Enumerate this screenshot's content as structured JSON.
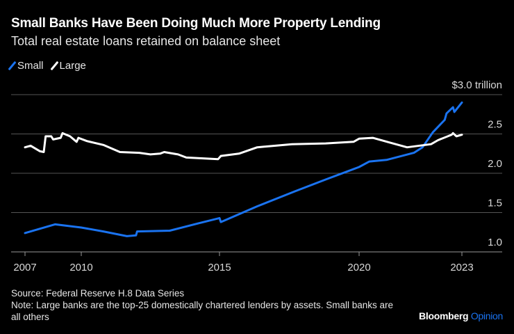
{
  "chart_data": {
    "type": "line",
    "title": "Small Banks Have Been Doing Much More Property Lending",
    "subtitle": "Total real estate loans retained on balance sheet",
    "ylabel": "",
    "xlabel": "",
    "y_unit_label": "$3.0 trillion",
    "ylim": [
      1.0,
      3.0
    ],
    "yticks": [
      1.0,
      1.5,
      2.0,
      2.5,
      3.0
    ],
    "ytick_labels": [
      "1.0",
      "1.5",
      "2.0",
      "2.5",
      "$3.0 trillion"
    ],
    "xticks": [
      2007,
      2010,
      2015,
      2020,
      2023
    ],
    "xtick_labels": [
      "2007",
      "2010",
      "2015",
      "2020",
      "2023"
    ],
    "grid": true,
    "legend_placement": "top-left",
    "series": [
      {
        "name": "Small",
        "color": "#1a73f0",
        "x": [
          2007.0,
          2008.6,
          2010.0,
          2010.8,
          2011.65,
          2011.98,
          2012.02,
          2013.2,
          2014.2,
          2015.0,
          2015.05,
          2016.35,
          2017.7,
          2018.8,
          2020.0,
          2020.3,
          2020.8,
          2021.6,
          2021.85,
          2022.15,
          2022.5,
          2022.55,
          2022.74,
          2022.78,
          2023.0
        ],
        "y": [
          1.24,
          1.35,
          1.31,
          1.26,
          1.2,
          1.21,
          1.26,
          1.27,
          1.36,
          1.43,
          1.38,
          1.58,
          1.77,
          1.92,
          2.08,
          2.15,
          2.17,
          2.26,
          2.33,
          2.52,
          2.68,
          2.76,
          2.84,
          2.78,
          2.9
        ]
      },
      {
        "name": "Large",
        "color": "#ffffff",
        "x": [
          2007.0,
          2007.3,
          2007.8,
          2008.0,
          2008.1,
          2008.4,
          2008.5,
          2008.9,
          2009.0,
          2009.4,
          2009.75,
          2009.85,
          2010.2,
          2010.8,
          2011.4,
          2012.1,
          2012.5,
          2012.85,
          2013.0,
          2013.5,
          2013.8,
          2014.35,
          2014.95,
          2015.05,
          2015.7,
          2016.35,
          2017.6,
          2018.8,
          2019.8,
          2020.0,
          2020.4,
          2020.9,
          2021.4,
          2022.1,
          2022.3,
          2022.7,
          2022.74,
          2022.84,
          2023.0
        ],
        "y": [
          2.33,
          2.35,
          2.28,
          2.27,
          2.47,
          2.47,
          2.43,
          2.45,
          2.51,
          2.47,
          2.4,
          2.45,
          2.41,
          2.36,
          2.27,
          2.26,
          2.24,
          2.25,
          2.27,
          2.24,
          2.2,
          2.19,
          2.18,
          2.22,
          2.25,
          2.33,
          2.37,
          2.38,
          2.4,
          2.44,
          2.45,
          2.39,
          2.33,
          2.37,
          2.42,
          2.49,
          2.51,
          2.47,
          2.49
        ]
      }
    ]
  },
  "footer": {
    "source": "Source: Federal Reserve H.8 Data Series",
    "note": "Note: Large banks are the top-25 domestically chartered lenders by assets. Small banks are all others"
  },
  "logo": {
    "brand": "Bloomberg",
    "section": "Opinion"
  }
}
